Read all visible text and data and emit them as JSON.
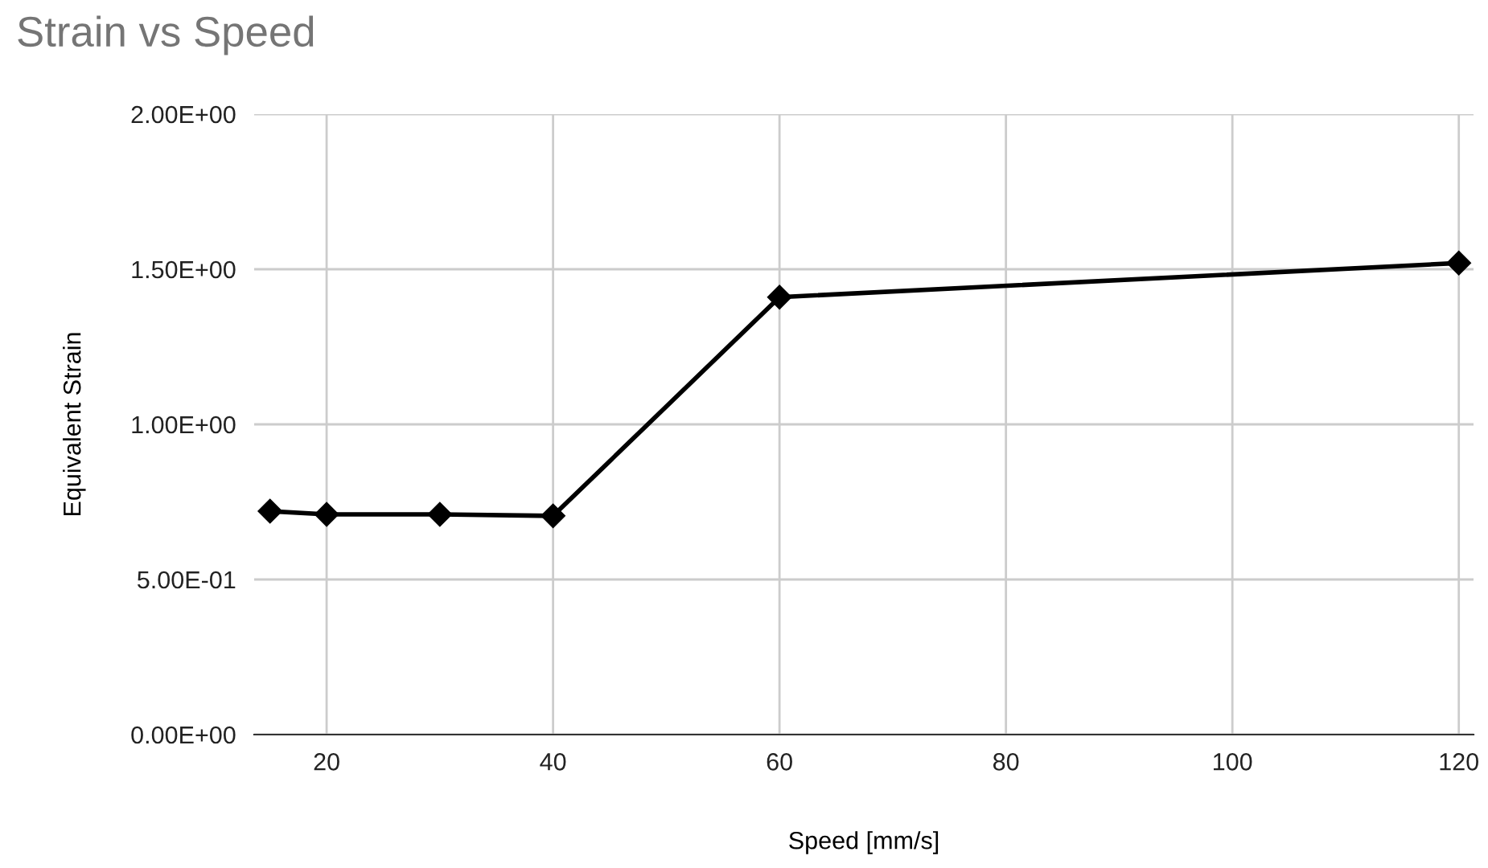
{
  "chart_data": {
    "type": "line",
    "title": "Strain vs Speed",
    "xlabel": "Speed [mm/s]",
    "ylabel": "Equivalent Strain",
    "x": [
      15,
      20,
      30,
      40,
      60,
      120
    ],
    "series": [
      {
        "color": "#000000",
        "values": [
          0.72,
          0.71,
          0.71,
          0.705,
          1.41,
          1.52
        ]
      }
    ],
    "xlim": [
      13.6,
      121.3
    ],
    "xticks": [
      20,
      40,
      60,
      80,
      100,
      120
    ],
    "ylim": [
      0,
      2
    ],
    "yticks": [
      {
        "value": 0,
        "label": "0.00E+00"
      },
      {
        "value": 0.5,
        "label": "5.00E-01"
      },
      {
        "value": 1,
        "label": "1.00E+00"
      },
      {
        "value": 1.5,
        "label": "1.50E+00"
      },
      {
        "value": 2,
        "label": "2.00E+00"
      }
    ],
    "grid": true,
    "marker": "diamond",
    "line_style": "solid",
    "legend": false
  }
}
